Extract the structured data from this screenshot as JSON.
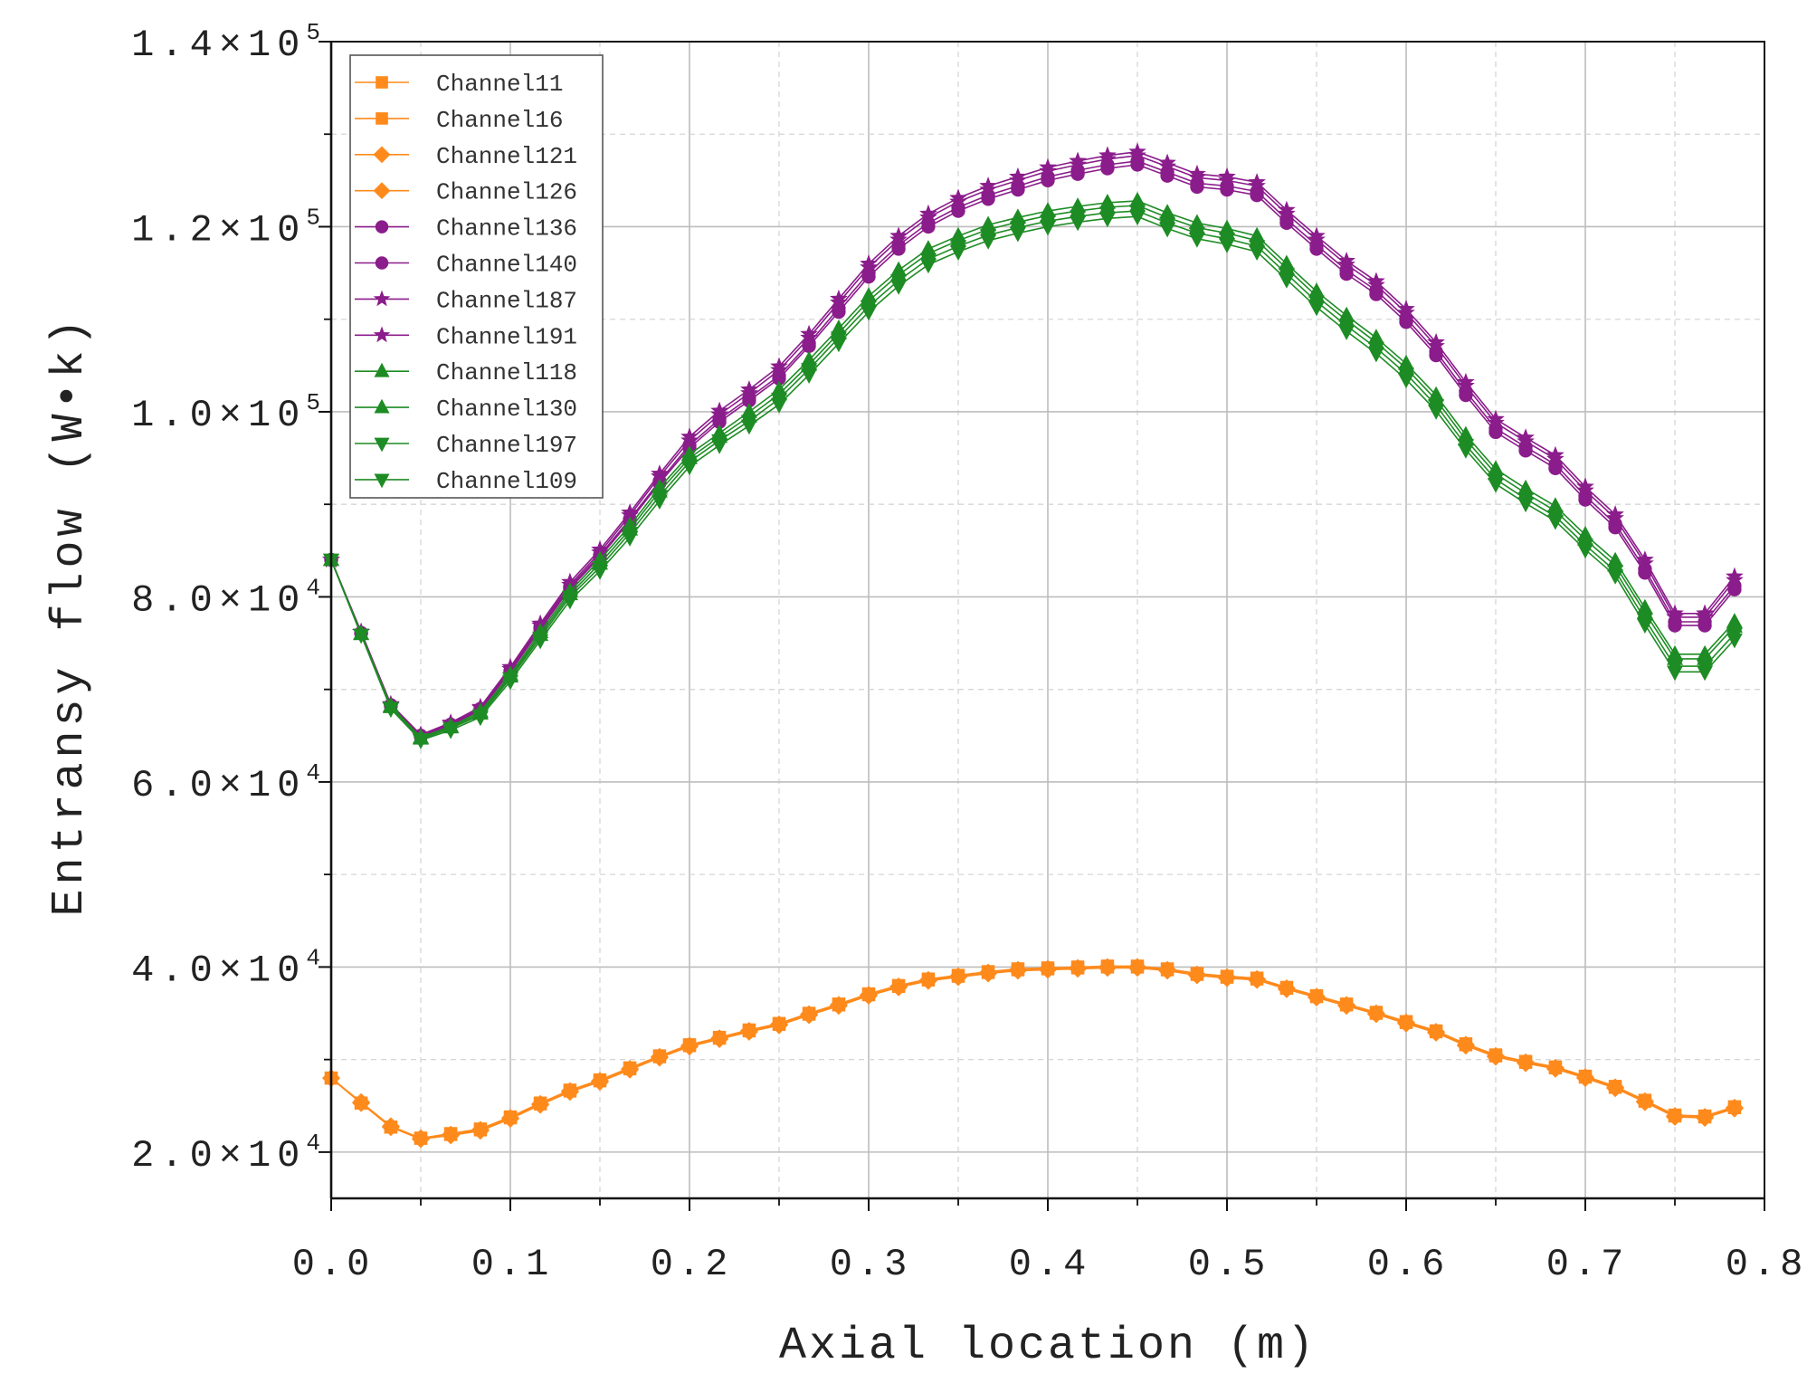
{
  "chart_data": {
    "type": "line",
    "title": "",
    "xlabel": "Axial location (m)",
    "ylabel": "Entransy flow (W•k)",
    "xlim": [
      0,
      0.8
    ],
    "ylim": [
      15000,
      140000
    ],
    "grid": true,
    "legend": "top-left",
    "xticks": [
      0,
      0.1,
      0.2,
      0.3,
      0.4,
      0.5,
      0.6,
      0.7,
      0.8
    ],
    "xticklabels": [
      "0.0",
      "0.1",
      "0.2",
      "0.3",
      "0.4",
      "0.5",
      "0.6",
      "0.7",
      "0.8"
    ],
    "xminor": [
      0.05,
      0.15,
      0.25,
      0.35,
      0.45,
      0.55,
      0.65,
      0.75
    ],
    "yticks": [
      20000,
      40000,
      60000,
      80000,
      100000,
      120000,
      140000
    ],
    "yticklabels": [
      {
        "text": "2.0×10",
        "exp": "4"
      },
      {
        "text": "4.0×10",
        "exp": "4"
      },
      {
        "text": "6.0×10",
        "exp": "4"
      },
      {
        "text": "8.0×10",
        "exp": "4"
      },
      {
        "text": "1.0×10",
        "exp": "5"
      },
      {
        "text": "1.2×10",
        "exp": "5"
      },
      {
        "text": "1.4×10",
        "exp": "5"
      }
    ],
    "yminor": [
      30000,
      50000,
      70000,
      90000,
      110000,
      130000
    ],
    "x": [
      0,
      0.0167,
      0.0333,
      0.05,
      0.0667,
      0.0833,
      0.1,
      0.1167,
      0.1333,
      0.15,
      0.1667,
      0.1833,
      0.2,
      0.2167,
      0.2333,
      0.25,
      0.2667,
      0.2833,
      0.3,
      0.3167,
      0.3333,
      0.35,
      0.3667,
      0.3833,
      0.4,
      0.4167,
      0.4333,
      0.45,
      0.4667,
      0.4833,
      0.5,
      0.5167,
      0.5333,
      0.55,
      0.5667,
      0.5833,
      0.6,
      0.6167,
      0.6333,
      0.65,
      0.6667,
      0.6833,
      0.7,
      0.7167,
      0.7333,
      0.75,
      0.7667,
      0.7833
    ],
    "series": [
      {
        "name": "Channel11",
        "color": "#FF8A1C",
        "marker": "square",
        "values": [
          28000,
          25300,
          22700,
          21500,
          21900,
          22400,
          23700,
          25200,
          26600,
          27700,
          29000,
          30300,
          31500,
          32300,
          33100,
          33800,
          34900,
          35900,
          37000,
          37900,
          38600,
          39000,
          39400,
          39700,
          39800,
          39900,
          40000,
          40000,
          39700,
          39200,
          38900,
          38700,
          37700,
          36800,
          35900,
          35000,
          34000,
          33000,
          31600,
          30400,
          29700,
          29100,
          28100,
          27000,
          25500,
          23900,
          23800,
          24800
        ]
      },
      {
        "name": "Channel16",
        "color": "#FF8A1C",
        "marker": "square",
        "values": [
          28000,
          25300,
          22700,
          21500,
          22000,
          22500,
          23800,
          25300,
          26700,
          27800,
          29100,
          30400,
          31600,
          32400,
          33200,
          33900,
          35000,
          36000,
          37100,
          38000,
          38700,
          39100,
          39500,
          39800,
          39900,
          40000,
          40100,
          40100,
          39800,
          39300,
          39000,
          38800,
          37800,
          36900,
          36000,
          35100,
          34100,
          33100,
          31700,
          30500,
          29800,
          29200,
          28200,
          27100,
          25600,
          24000,
          23900,
          24900
        ]
      },
      {
        "name": "Channel121",
        "color": "#FF8A1C",
        "marker": "diamond",
        "values": [
          28000,
          25300,
          22700,
          21400,
          21800,
          22300,
          23600,
          25100,
          26500,
          27600,
          28900,
          30200,
          31400,
          32200,
          33000,
          33700,
          34800,
          35800,
          36900,
          37800,
          38500,
          38900,
          39300,
          39600,
          39700,
          39800,
          39900,
          39900,
          39600,
          39100,
          38800,
          38600,
          37600,
          36700,
          35800,
          34900,
          33900,
          32900,
          31500,
          30300,
          29600,
          29000,
          28000,
          26900,
          25400,
          23800,
          23700,
          24700
        ]
      },
      {
        "name": "Channel126",
        "color": "#FF8A1C",
        "marker": "diamond",
        "values": [
          28000,
          25400,
          22800,
          21500,
          21900,
          22400,
          23700,
          25200,
          26600,
          27700,
          29000,
          30300,
          31500,
          32300,
          33100,
          33800,
          34900,
          35900,
          37000,
          37900,
          38600,
          39000,
          39400,
          39700,
          39800,
          39900,
          40000,
          40000,
          39700,
          39200,
          38900,
          38700,
          37700,
          36800,
          35900,
          35000,
          34000,
          33000,
          31600,
          30400,
          29700,
          29100,
          28100,
          27000,
          25500,
          23900,
          23800,
          24800
        ]
      },
      {
        "name": "Channel136",
        "color": "#8B1C8B",
        "marker": "circle",
        "values": [
          84000,
          76100,
          68200,
          64900,
          66100,
          67800,
          71900,
          76500,
          80900,
          84300,
          88200,
          92300,
          96100,
          98900,
          101200,
          103600,
          107100,
          110800,
          114600,
          117600,
          120000,
          121700,
          123000,
          124000,
          125000,
          125700,
          126300,
          126700,
          125500,
          124300,
          124000,
          123400,
          120400,
          117600,
          114900,
          112700,
          109700,
          106100,
          101800,
          97800,
          95800,
          93900,
          90500,
          87500,
          82600,
          76900,
          76900,
          80800
        ]
      },
      {
        "name": "Channel140",
        "color": "#8B1C8B",
        "marker": "circle",
        "values": [
          84000,
          76100,
          68300,
          65000,
          66200,
          67900,
          72000,
          76700,
          81100,
          84500,
          88400,
          92500,
          96400,
          99200,
          101500,
          103900,
          107400,
          111200,
          115000,
          118000,
          120400,
          122100,
          123400,
          124400,
          125400,
          126100,
          126700,
          127100,
          125900,
          124700,
          124400,
          123800,
          120800,
          118000,
          115300,
          113100,
          110100,
          106500,
          102200,
          98200,
          96200,
          94300,
          90900,
          87900,
          83000,
          77300,
          77300,
          81200
        ]
      },
      {
        "name": "Channel187",
        "color": "#8B1C8B",
        "marker": "star",
        "values": [
          84000,
          76200,
          68300,
          65000,
          66300,
          68000,
          72200,
          76900,
          81300,
          84800,
          88800,
          93000,
          96900,
          99700,
          102000,
          104500,
          108000,
          111800,
          115600,
          118600,
          121000,
          122700,
          124000,
          125000,
          126000,
          126700,
          127300,
          127700,
          126500,
          125300,
          125000,
          124400,
          121400,
          118600,
          115900,
          113700,
          110700,
          107100,
          102800,
          98800,
          96800,
          94900,
          91500,
          88500,
          83600,
          77800,
          77800,
          81800
        ]
      },
      {
        "name": "Channel191",
        "color": "#8B1C8B",
        "marker": "star",
        "values": [
          84000,
          76200,
          68400,
          65100,
          66400,
          68100,
          72400,
          77100,
          81600,
          85100,
          89100,
          93300,
          97300,
          100100,
          102400,
          104900,
          108400,
          112200,
          116000,
          119000,
          121400,
          123100,
          124400,
          125400,
          126400,
          127100,
          127700,
          128100,
          126900,
          125700,
          125400,
          124800,
          121800,
          119000,
          116300,
          114100,
          111100,
          107500,
          103200,
          99200,
          97200,
          95300,
          91900,
          88900,
          84000,
          78200,
          78200,
          82200
        ]
      },
      {
        "name": "Channel118",
        "color": "#1E8C24",
        "marker": "triangle-up",
        "values": [
          84000,
          76000,
          68200,
          64800,
          66000,
          67600,
          71600,
          76200,
          80600,
          84000,
          87700,
          91800,
          95400,
          97700,
          100000,
          102400,
          105600,
          109000,
          112500,
          115300,
          117600,
          119000,
          120200,
          121000,
          121700,
          122200,
          122600,
          122800,
          121500,
          120400,
          119800,
          119000,
          116000,
          113000,
          110400,
          108000,
          105200,
          101800,
          97500,
          93800,
          91700,
          89800,
          86700,
          83900,
          78800,
          73800,
          73800,
          77300
        ]
      },
      {
        "name": "Channel130",
        "color": "#1E8C24",
        "marker": "triangle-up",
        "values": [
          84000,
          76000,
          68100,
          64700,
          65900,
          67400,
          71400,
          75900,
          80300,
          83600,
          87300,
          91400,
          95000,
          97300,
          99500,
          101900,
          105100,
          108500,
          112000,
          114800,
          117100,
          118500,
          119700,
          120500,
          121200,
          121700,
          122100,
          122300,
          121000,
          119900,
          119300,
          118500,
          115500,
          112500,
          109900,
          107500,
          104700,
          101300,
          97000,
          93300,
          91200,
          89300,
          86200,
          83400,
          78300,
          73300,
          73300,
          76800
        ]
      },
      {
        "name": "Channel197",
        "color": "#1E8C24",
        "marker": "triangle-down",
        "values": [
          84000,
          75900,
          68000,
          64600,
          65800,
          67200,
          71200,
          75600,
          80000,
          83200,
          86900,
          90900,
          94600,
          96900,
          99000,
          101400,
          104600,
          108000,
          111400,
          114200,
          116500,
          117900,
          119100,
          119900,
          120600,
          121100,
          121500,
          121700,
          120400,
          119300,
          118700,
          117900,
          114900,
          111900,
          109300,
          106900,
          104100,
          100700,
          96400,
          92700,
          90600,
          88700,
          85600,
          82800,
          77600,
          72500,
          72500,
          76000
        ]
      },
      {
        "name": "Channel109",
        "color": "#1E8C24",
        "marker": "triangle-down",
        "values": [
          84000,
          75900,
          67900,
          64500,
          65600,
          67000,
          70900,
          75300,
          79600,
          82800,
          86400,
          90400,
          94100,
          96400,
          98500,
          100800,
          104000,
          107400,
          110800,
          113600,
          115900,
          117300,
          118500,
          119300,
          120000,
          120500,
          120900,
          121100,
          119800,
          118700,
          118100,
          117300,
          114300,
          111300,
          108700,
          106300,
          103500,
          100100,
          95900,
          92200,
          90100,
          88200,
          85100,
          82300,
          77000,
          71900,
          71900,
          75400
        ]
      }
    ]
  }
}
